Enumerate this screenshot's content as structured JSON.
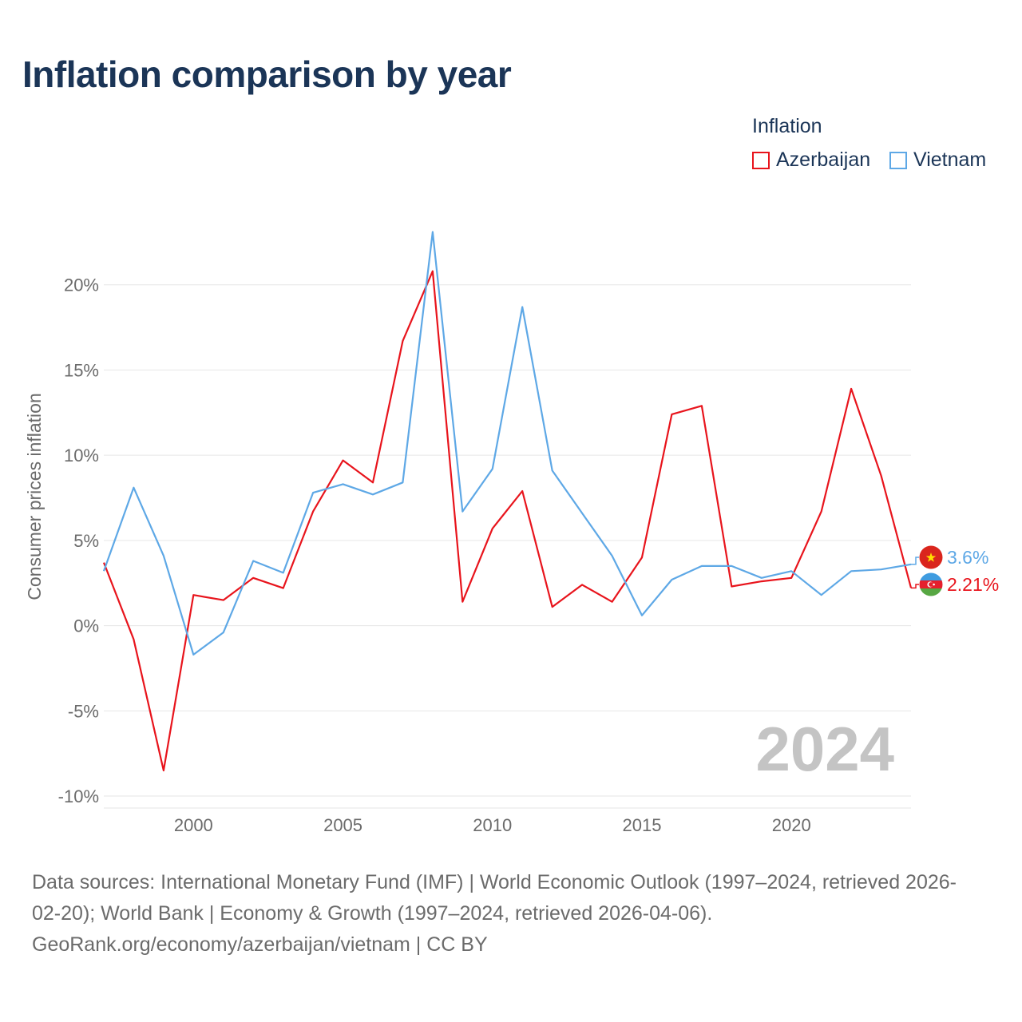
{
  "title": "Inflation comparison by year",
  "legend": {
    "title": "Inflation",
    "items": [
      {
        "label": "Azerbaijan",
        "color": "#e8141c"
      },
      {
        "label": "Vietnam",
        "color": "#5ea8e6"
      }
    ]
  },
  "chart_data": {
    "type": "line",
    "title": "Inflation comparison by year",
    "ylabel": "Consumer prices inflation",
    "xlabel": "",
    "x": [
      1997,
      1998,
      1999,
      2000,
      2001,
      2002,
      2003,
      2004,
      2005,
      2006,
      2007,
      2008,
      2009,
      2010,
      2011,
      2012,
      2013,
      2014,
      2015,
      2016,
      2017,
      2018,
      2019,
      2020,
      2021,
      2022,
      2023,
      2024
    ],
    "xlim": [
      1997,
      2024
    ],
    "ylim": [
      -10.7,
      23.5
    ],
    "xticks": [
      2000,
      2005,
      2010,
      2015,
      2020
    ],
    "yticks": [
      -10,
      -5,
      0,
      5,
      10,
      15,
      20
    ],
    "ytick_labels": [
      "-10%",
      "-5%",
      "0%",
      "5%",
      "10%",
      "15%",
      "20%"
    ],
    "grid": true,
    "watermark": "2024",
    "series": [
      {
        "name": "Azerbaijan",
        "color": "#e8141c",
        "values": [
          3.7,
          -0.8,
          -8.5,
          1.8,
          1.5,
          2.8,
          2.2,
          6.7,
          9.7,
          8.4,
          16.7,
          20.8,
          1.4,
          5.7,
          7.9,
          1.1,
          2.4,
          1.4,
          4.0,
          12.4,
          12.9,
          2.3,
          2.6,
          2.8,
          6.7,
          13.9,
          8.8,
          2.21
        ],
        "end_label": "2.21%"
      },
      {
        "name": "Vietnam",
        "color": "#5ea8e6",
        "values": [
          3.2,
          8.1,
          4.1,
          -1.7,
          -0.4,
          3.8,
          3.1,
          7.8,
          8.3,
          7.7,
          8.4,
          23.1,
          6.7,
          9.2,
          18.7,
          9.1,
          6.6,
          4.1,
          0.6,
          2.7,
          3.5,
          3.5,
          2.8,
          3.2,
          1.8,
          3.2,
          3.3,
          3.6
        ],
        "end_label": "3.6%"
      }
    ]
  },
  "footer": {
    "line1": "Data sources: International Monetary Fund (IMF) | World Economic Outlook (1997–2024, retrieved 2026-",
    "line2": "02-20); World Bank | Economy & Growth (1997–2024, retrieved 2026-04-06).",
    "line3": "GeoRank.org/economy/azerbaijan/vietnam | CC BY"
  }
}
